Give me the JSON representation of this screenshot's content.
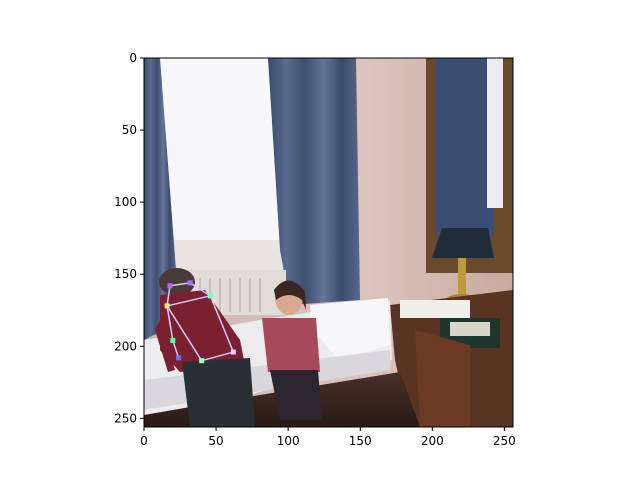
{
  "figure": {
    "x_axis": {
      "ticks": [
        "0",
        "50",
        "100",
        "150",
        "200",
        "250"
      ],
      "range": [
        0,
        256
      ]
    },
    "y_axis": {
      "ticks": [
        "0",
        "50",
        "100",
        "150",
        "200",
        "250"
      ],
      "range": [
        0,
        256
      ]
    }
  },
  "photo": {
    "description_tags": [
      "room-window",
      "curtains",
      "bed",
      "child-standing",
      "child-sitting",
      "desk",
      "lamp",
      "mirror"
    ]
  },
  "pose": {
    "skeleton_color": "#d8c8ff",
    "keypoints": [
      {
        "x": 18,
        "y": 158,
        "color": "#c060ff"
      },
      {
        "x": 32,
        "y": 156,
        "color": "#b070ff"
      },
      {
        "x": 46,
        "y": 165,
        "color": "#80ffd0"
      },
      {
        "x": 16,
        "y": 172,
        "color": "#f0f080"
      },
      {
        "x": 20,
        "y": 196,
        "color": "#60ff90"
      },
      {
        "x": 24,
        "y": 208,
        "color": "#7070ff"
      },
      {
        "x": 40,
        "y": 210,
        "color": "#a0ffc0"
      },
      {
        "x": 62,
        "y": 204,
        "color": "#f0c8ff"
      }
    ],
    "edges": [
      [
        0,
        1
      ],
      [
        1,
        2
      ],
      [
        0,
        3
      ],
      [
        3,
        4
      ],
      [
        4,
        5
      ],
      [
        3,
        6
      ],
      [
        6,
        7
      ],
      [
        7,
        2
      ],
      [
        3,
        2
      ]
    ]
  },
  "colors": {
    "axes": "#000000",
    "wall": "#d8bfb8",
    "curtain": "#4d5f82",
    "window": "#f8f8fb"
  }
}
